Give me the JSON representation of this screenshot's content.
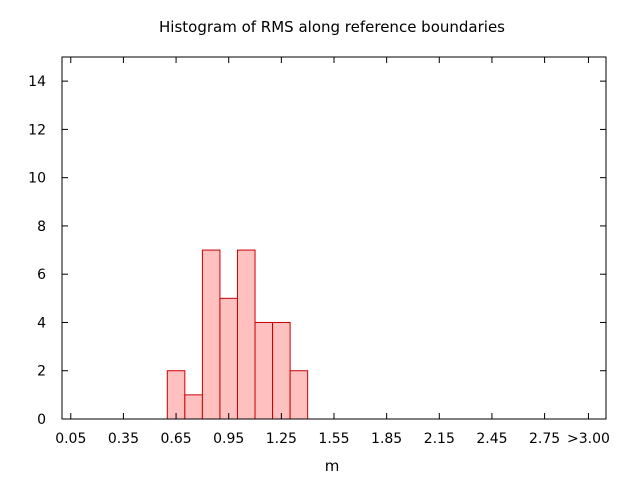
{
  "chart_data": {
    "type": "bar",
    "title": "Histogram of RMS along reference boundaries",
    "xlabel": "m",
    "ylabel": "",
    "xlim": [
      0.0,
      3.1
    ],
    "ylim": [
      0,
      15
    ],
    "x_tick_values": [
      0.05,
      0.35,
      0.65,
      0.95,
      1.25,
      1.55,
      1.85,
      2.15,
      2.45,
      2.75,
      3.0
    ],
    "x_tick_labels": [
      "0.05",
      "0.35",
      "0.65",
      "0.95",
      "1.25",
      "1.55",
      "1.85",
      "2.15",
      "2.45",
      "2.75",
      ">3.00"
    ],
    "y_ticks": [
      0,
      2,
      4,
      6,
      8,
      10,
      12,
      14
    ],
    "bin_width": 0.1,
    "bin_centers": [
      0.65,
      0.75,
      0.85,
      0.95,
      1.05,
      1.15,
      1.25,
      1.35
    ],
    "values": [
      2,
      1,
      7,
      5,
      7,
      4,
      4,
      2
    ],
    "bar_fill": "#ffc0c0",
    "bar_stroke": "#cc0000",
    "grid": false,
    "legend": "none"
  }
}
